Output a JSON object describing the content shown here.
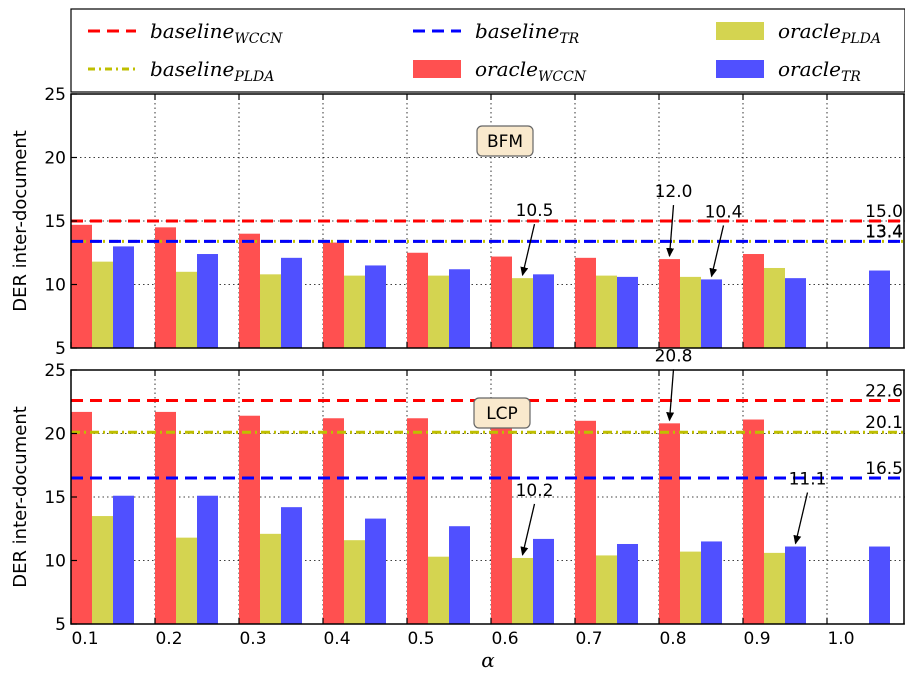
{
  "chart_data": {
    "type": "bar",
    "x": [
      "0.1",
      "0.2",
      "0.3",
      "0.4",
      "0.5",
      "0.6",
      "0.7",
      "0.8",
      "0.9",
      "1.0"
    ],
    "xlabel": "α",
    "ylabel": "DER inter-document",
    "ylim": [
      5,
      25
    ],
    "yticks": [
      "5",
      "10",
      "15",
      "20",
      "25"
    ],
    "grid": true,
    "legend": {
      "placement": "top",
      "entries": [
        {
          "key": "baseline_wccn",
          "base": "baseline",
          "sub": "WCCN",
          "kind": "dashed",
          "color": "#ff0000"
        },
        {
          "key": "baseline_pld",
          "base": "baseline",
          "sub": "PLDA",
          "kind": "dashdot",
          "color": "#bfbf00"
        },
        {
          "key": "baseline_tr",
          "base": "baseline",
          "sub": "TR",
          "kind": "dashed",
          "color": "#0000ff"
        },
        {
          "key": "oracle_wccn",
          "base": "oracle",
          "sub": "WCCN",
          "kind": "bar",
          "color": "#ff5050"
        },
        {
          "key": "oracle_pld",
          "base": "oracle",
          "sub": "PLDA",
          "kind": "bar",
          "color": "#d4d450"
        },
        {
          "key": "oracle_tr",
          "base": "oracle",
          "sub": "TR",
          "kind": "bar",
          "color": "#5050ff"
        }
      ]
    },
    "panels": [
      {
        "name": "BFM",
        "series": [
          {
            "key": "oracle_wccn",
            "color": "#ff5050",
            "values": [
              14.7,
              14.5,
              14.0,
              13.3,
              12.5,
              12.2,
              12.1,
              12.0,
              12.4,
              null
            ]
          },
          {
            "key": "oracle_pld",
            "color": "#d4d450",
            "values": [
              11.8,
              11.0,
              10.8,
              10.7,
              10.7,
              10.5,
              10.7,
              10.6,
              11.3,
              null
            ]
          },
          {
            "key": "oracle_tr",
            "color": "#5050ff",
            "values": [
              13.0,
              12.4,
              12.1,
              11.5,
              11.2,
              10.8,
              10.6,
              10.4,
              10.5,
              11.1
            ]
          }
        ],
        "baselines": [
          {
            "key": "baseline_wccn",
            "value": 15.0,
            "label": "15.0",
            "color": "#ff0000",
            "dash": "dashed"
          },
          {
            "key": "baseline_pld",
            "value": 13.4,
            "label": "13.4",
            "color": "#bfbf00",
            "dash": "dashdot"
          },
          {
            "key": "baseline_tr",
            "value": 13.4,
            "label": "13.4",
            "color": "#0000ff",
            "dash": "dashed"
          }
        ],
        "annotations": [
          {
            "text": "10.5",
            "category": 5,
            "series": 1,
            "value": 10.5
          },
          {
            "text": "12.0",
            "category": 7,
            "series": 0,
            "value": 12.0
          },
          {
            "text": "10.4",
            "category": 7,
            "series": 2,
            "value": 10.4
          }
        ]
      },
      {
        "name": "LCP",
        "series": [
          {
            "key": "oracle_wccn",
            "color": "#ff5050",
            "values": [
              21.7,
              21.7,
              21.4,
              21.2,
              21.2,
              21.0,
              21.0,
              20.8,
              21.1,
              null
            ]
          },
          {
            "key": "oracle_pld",
            "color": "#d4d450",
            "values": [
              13.5,
              11.8,
              12.1,
              11.6,
              10.3,
              10.2,
              10.4,
              10.7,
              10.6,
              null
            ]
          },
          {
            "key": "oracle_tr",
            "color": "#5050ff",
            "values": [
              15.1,
              15.1,
              14.2,
              13.3,
              12.7,
              11.7,
              11.3,
              11.5,
              11.1,
              11.1
            ]
          }
        ],
        "baselines": [
          {
            "key": "baseline_wccn",
            "value": 22.6,
            "label": "22.6",
            "color": "#ff0000",
            "dash": "dashed"
          },
          {
            "key": "baseline_pld",
            "value": 20.1,
            "label": "20.1",
            "color": "#bfbf00",
            "dash": "dashdot"
          },
          {
            "key": "baseline_tr",
            "value": 16.5,
            "label": "16.5",
            "color": "#0000ff",
            "dash": "dashed"
          }
        ],
        "annotations": [
          {
            "text": "10.2",
            "category": 5,
            "series": 1,
            "value": 10.2
          },
          {
            "text": "20.8",
            "category": 7,
            "series": 0,
            "value": 20.8
          },
          {
            "text": "11.1",
            "category": 8,
            "series": 2,
            "value": 11.1
          }
        ]
      }
    ]
  }
}
